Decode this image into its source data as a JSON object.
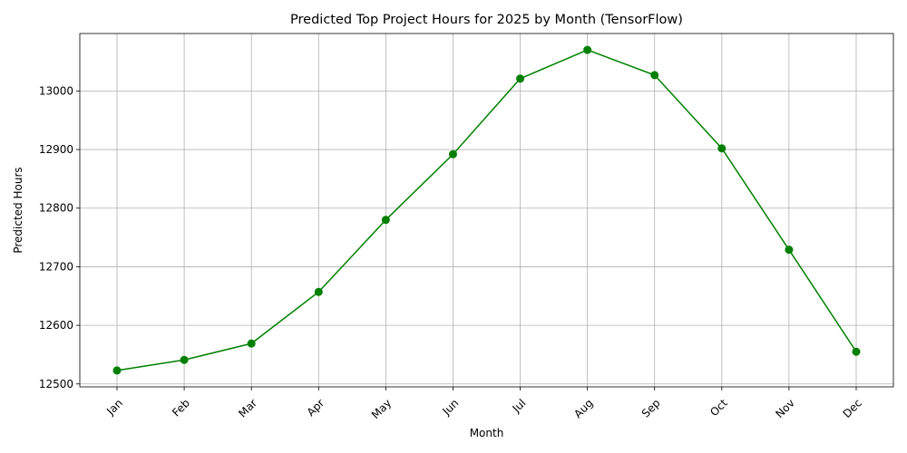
{
  "chart_data": {
    "type": "line",
    "title": "Predicted Top Project Hours for 2025 by Month (TensorFlow)",
    "xlabel": "Month",
    "ylabel": "Predicted Hours",
    "categories": [
      "Jan",
      "Feb",
      "Mar",
      "Apr",
      "May",
      "Jun",
      "Jul",
      "Aug",
      "Sep",
      "Oct",
      "Nov",
      "Dec"
    ],
    "series": [
      {
        "values": [
          12523,
          12541,
          12569,
          12657,
          12780,
          12892,
          13021,
          13070,
          13027,
          12902,
          12729,
          12555
        ],
        "color": "#008000",
        "marker": "circle"
      }
    ],
    "yticks": [
      12500,
      12600,
      12700,
      12800,
      12900,
      13000
    ],
    "ylim": [
      12495,
      13098
    ],
    "grid": true,
    "legend": "none"
  }
}
